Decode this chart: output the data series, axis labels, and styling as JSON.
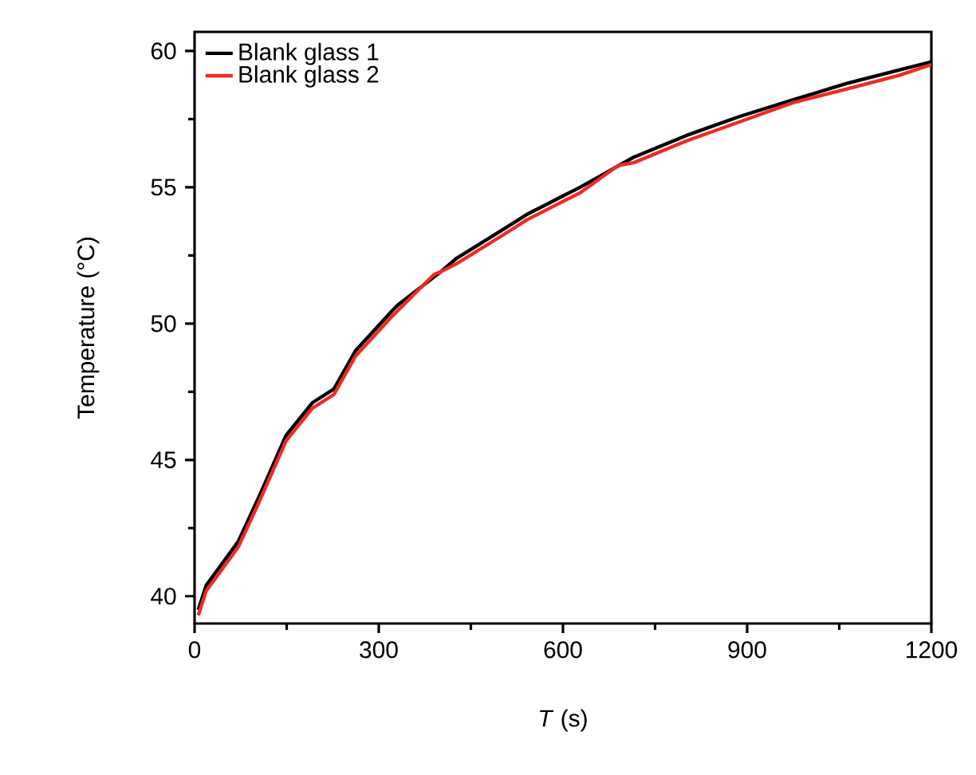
{
  "chart_data": {
    "type": "line",
    "xlabel": "*T* (s)",
    "ylabel": "Temperature (°C)",
    "xlim": [
      0,
      1200
    ],
    "ylim": [
      39,
      60.7
    ],
    "xticks": [
      0,
      {
        "value": 150,
        "label": null
      },
      300,
      {
        "value": 450,
        "label": null
      },
      600,
      {
        "value": 750,
        "label": null
      },
      900,
      {
        "value": 1050,
        "label": null
      },
      1200
    ],
    "yticks": [
      40,
      {
        "value": 42.5,
        "label": null
      },
      45,
      {
        "value": 47.5,
        "label": null
      },
      50,
      {
        "value": 52.5,
        "label": null
      },
      55,
      {
        "value": 57.5,
        "label": null
      },
      60
    ],
    "legend": "top left",
    "grid": false,
    "marker": "none",
    "line_style": "solid",
    "series": [
      {
        "name": "Blank glass 1",
        "color": "#000000",
        "x": [
          6,
          19,
          45,
          71,
          106,
          149,
          192,
          227,
          262,
          323,
          332,
          401,
          427,
          506,
          541,
          593,
          628,
          715,
          801,
          888,
          974,
          1061,
          1147,
          1200
        ],
        "values": [
          39.5,
          40.4,
          41.2,
          42.0,
          43.7,
          45.9,
          47.1,
          47.6,
          49.0,
          50.5,
          50.7,
          51.9,
          52.4,
          53.5,
          54.0,
          54.6,
          55.0,
          56.1,
          56.9,
          57.6,
          58.2,
          58.8,
          59.3,
          59.6
        ]
      },
      {
        "name": "Blank glass 2",
        "color": "#ee2a24",
        "x": [
          6,
          19,
          45,
          71,
          106,
          149,
          192,
          227,
          262,
          323,
          332,
          390,
          401,
          427,
          506,
          541,
          593,
          628,
          690,
          715,
          801,
          888,
          974,
          1061,
          1147,
          1200
        ],
        "values": [
          39.3,
          40.2,
          41.0,
          41.8,
          43.5,
          45.7,
          46.9,
          47.4,
          48.8,
          50.3,
          50.5,
          51.8,
          51.9,
          52.2,
          53.3,
          53.8,
          54.4,
          54.8,
          55.8,
          55.9,
          56.7,
          57.4,
          58.1,
          58.6,
          59.1,
          59.5
        ]
      }
    ]
  }
}
